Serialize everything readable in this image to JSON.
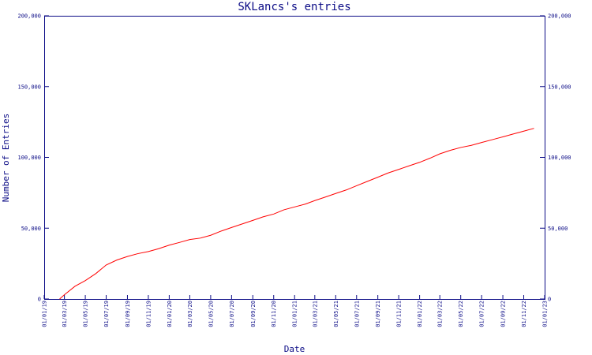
{
  "chart_data": {
    "type": "line",
    "title": "SKLancs's entries",
    "xlabel": "Date",
    "ylabel": "Number of Entries",
    "x_ticks": [
      "01/01/19",
      "01/03/19",
      "01/05/19",
      "01/07/19",
      "01/09/19",
      "01/11/19",
      "01/01/20",
      "01/03/20",
      "01/05/20",
      "01/07/20",
      "01/09/20",
      "01/11/20",
      "01/01/21",
      "01/03/21",
      "01/05/21",
      "01/07/21",
      "01/09/21",
      "01/11/21",
      "01/01/22",
      "01/03/22",
      "01/05/22",
      "01/07/22",
      "01/09/22",
      "01/11/22",
      "01/01/23"
    ],
    "y_ticks": [
      "0",
      "50,000",
      "100,000",
      "150,000",
      "200,000"
    ],
    "ylim": [
      0,
      200000
    ],
    "xlim": [
      "2019-01-01",
      "2023-01-01"
    ],
    "grid": false,
    "series": [
      {
        "color": "#ff0000",
        "points": [
          [
            "2019-02-15",
            0
          ],
          [
            "2019-03-01",
            3000
          ],
          [
            "2019-04-01",
            9000
          ],
          [
            "2019-05-01",
            13000
          ],
          [
            "2019-06-01",
            18000
          ],
          [
            "2019-07-01",
            24000
          ],
          [
            "2019-08-01",
            27500
          ],
          [
            "2019-09-01",
            30000
          ],
          [
            "2019-10-01",
            32000
          ],
          [
            "2019-11-01",
            33500
          ],
          [
            "2019-12-01",
            35500
          ],
          [
            "2020-01-01",
            38000
          ],
          [
            "2020-02-01",
            40000
          ],
          [
            "2020-03-01",
            42000
          ],
          [
            "2020-04-01",
            43000
          ],
          [
            "2020-05-01",
            45000
          ],
          [
            "2020-06-01",
            48000
          ],
          [
            "2020-07-01",
            50500
          ],
          [
            "2020-08-01",
            53000
          ],
          [
            "2020-09-01",
            55500
          ],
          [
            "2020-10-01",
            58000
          ],
          [
            "2020-11-01",
            60000
          ],
          [
            "2020-12-01",
            63000
          ],
          [
            "2021-01-01",
            65000
          ],
          [
            "2021-02-01",
            67000
          ],
          [
            "2021-03-01",
            69500
          ],
          [
            "2021-04-01",
            72000
          ],
          [
            "2021-05-01",
            74500
          ],
          [
            "2021-06-01",
            77000
          ],
          [
            "2021-07-01",
            80000
          ],
          [
            "2021-08-01",
            83000
          ],
          [
            "2021-09-01",
            86000
          ],
          [
            "2021-10-01",
            89000
          ],
          [
            "2021-11-01",
            91500
          ],
          [
            "2021-12-01",
            94000
          ],
          [
            "2022-01-01",
            96500
          ],
          [
            "2022-02-01",
            99500
          ],
          [
            "2022-03-01",
            102500
          ],
          [
            "2022-04-01",
            105000
          ],
          [
            "2022-05-01",
            107000
          ],
          [
            "2022-06-01",
            108500
          ],
          [
            "2022-07-01",
            110500
          ],
          [
            "2022-08-01",
            112500
          ],
          [
            "2022-09-01",
            114500
          ],
          [
            "2022-10-01",
            116500
          ],
          [
            "2022-11-01",
            118500
          ],
          [
            "2022-12-01",
            120500
          ]
        ]
      }
    ],
    "colors": {
      "axis": "#0b0b86",
      "line": "#ff0000",
      "background": "#ffffff"
    }
  }
}
